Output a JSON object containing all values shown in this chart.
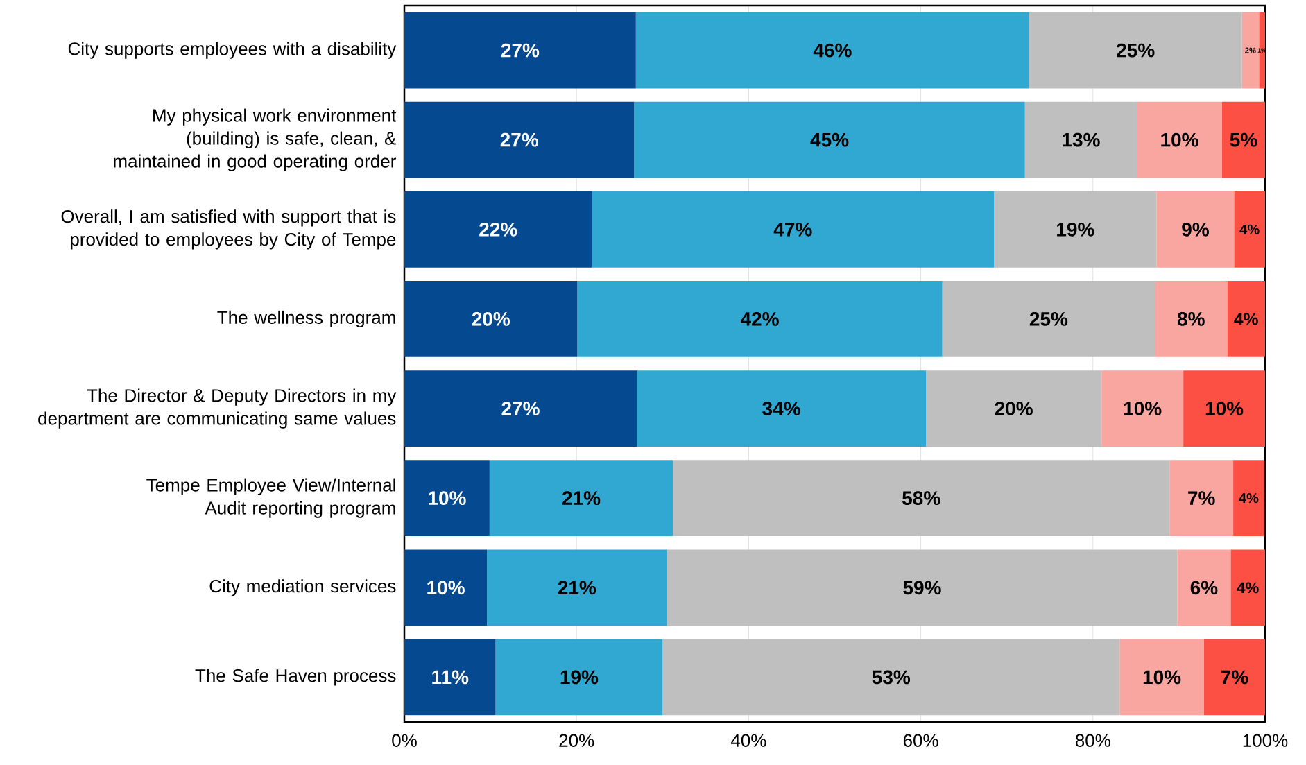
{
  "chart_data": {
    "type": "bar",
    "orientation": "horizontal",
    "stacked": true,
    "categories": [
      "City supports employees with a disability",
      "My physical work environment (building) is safe, clean, & maintained in good operating order",
      "Overall, I am satisfied with support that is provided to employees by City of Tempe",
      "The wellness program",
      "The Director & Deputy Directors in my department are communicating same values",
      "Tempe Employee View/Internal Audit reporting program",
      "City mediation services",
      "The Safe Haven process"
    ],
    "series": [
      {
        "color": "#054a91",
        "values": [
          26.9,
          26.7,
          21.8,
          20.1,
          27.0,
          9.9,
          9.6,
          10.6
        ],
        "value_labels": [
          "27%",
          "27%",
          "22%",
          "20%",
          "27%",
          "10%",
          "10%",
          "11%"
        ]
      },
      {
        "color": "#31a8d2",
        "values": [
          45.7,
          45.4,
          46.7,
          42.4,
          33.6,
          21.3,
          20.9,
          19.4
        ],
        "value_labels": [
          "46%",
          "45%",
          "47%",
          "42%",
          "34%",
          "21%",
          "21%",
          "19%"
        ]
      },
      {
        "color": "#bfbfbf",
        "values": [
          24.7,
          13.0,
          18.9,
          24.7,
          20.4,
          57.7,
          59.3,
          53.1
        ],
        "value_labels": [
          "25%",
          "13%",
          "19%",
          "25%",
          "20%",
          "58%",
          "59%",
          "53%"
        ]
      },
      {
        "color": "#f9a6a0",
        "values": [
          2.0,
          9.9,
          9.0,
          8.4,
          9.5,
          7.4,
          6.2,
          9.8
        ],
        "value_labels": [
          "2%",
          "10%",
          "9%",
          "8%",
          "10%",
          "7%",
          "6%",
          "10%"
        ]
      },
      {
        "color": "#fd5044",
        "values": [
          0.7,
          5.0,
          3.6,
          4.4,
          9.5,
          3.6,
          4.0,
          7.1
        ],
        "value_labels": [
          "1%",
          "5%",
          "4%",
          "4%",
          "10%",
          "4%",
          "4%",
          "7%"
        ]
      }
    ],
    "xlim": [
      0,
      100
    ],
    "xticks": [
      {
        "value": 0,
        "label": "0%"
      },
      {
        "value": 20,
        "label": "20%"
      },
      {
        "value": 40,
        "label": "40%"
      },
      {
        "value": 60,
        "label": "60%"
      },
      {
        "value": 80,
        "label": "80%"
      },
      {
        "value": 100,
        "label": "100%"
      }
    ],
    "grid": "x"
  }
}
